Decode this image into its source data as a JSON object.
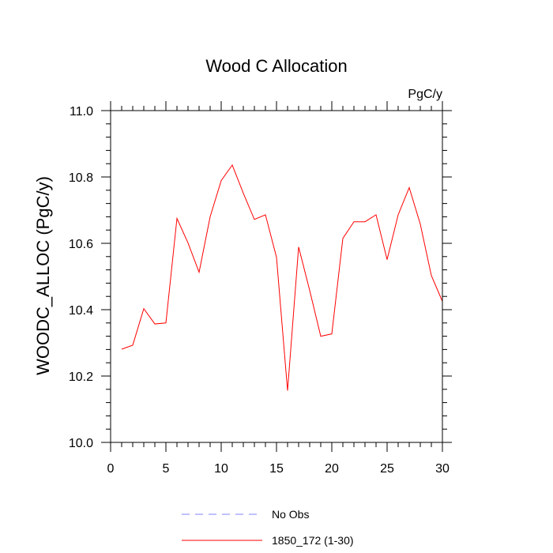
{
  "chart_data": {
    "type": "line",
    "title": "Wood C Allocation",
    "units_label": "PgC/y",
    "xlabel": "",
    "ylabel": "WOODC_ALLOC  (PgC/y)",
    "xlim": [
      0,
      30
    ],
    "ylim": [
      10.0,
      11.0
    ],
    "x_ticks": [
      0,
      5,
      10,
      15,
      20,
      25,
      30
    ],
    "x_tick_labels": [
      "0",
      "5",
      "10",
      "15",
      "20",
      "25",
      "30"
    ],
    "y_ticks": [
      10.0,
      10.2,
      10.4,
      10.6,
      10.8,
      11.0
    ],
    "y_tick_labels": [
      "10.0",
      "10.2",
      "10.4",
      "10.6",
      "10.8",
      "11.0"
    ],
    "grid": false,
    "legend_position": "bottom",
    "series": [
      {
        "name": "No Obs",
        "color": "#8080ff",
        "dash": true,
        "x": [],
        "values": []
      },
      {
        "name": "1850_172 (1-30)",
        "color": "#ff0000",
        "dash": false,
        "x": [
          1,
          2,
          3,
          4,
          5,
          6,
          7,
          8,
          9,
          10,
          11,
          12,
          13,
          14,
          15,
          16,
          17,
          18,
          19,
          20,
          21,
          22,
          23,
          24,
          25,
          26,
          27,
          28,
          29,
          30
        ],
        "values": [
          10.281,
          10.293,
          10.403,
          10.357,
          10.36,
          10.675,
          10.601,
          10.513,
          10.68,
          10.789,
          10.836,
          10.751,
          10.672,
          10.686,
          10.558,
          10.156,
          10.589,
          10.458,
          10.32,
          10.327,
          10.615,
          10.665,
          10.665,
          10.686,
          10.551,
          10.686,
          10.768,
          10.658,
          10.503,
          10.425
        ]
      }
    ]
  }
}
